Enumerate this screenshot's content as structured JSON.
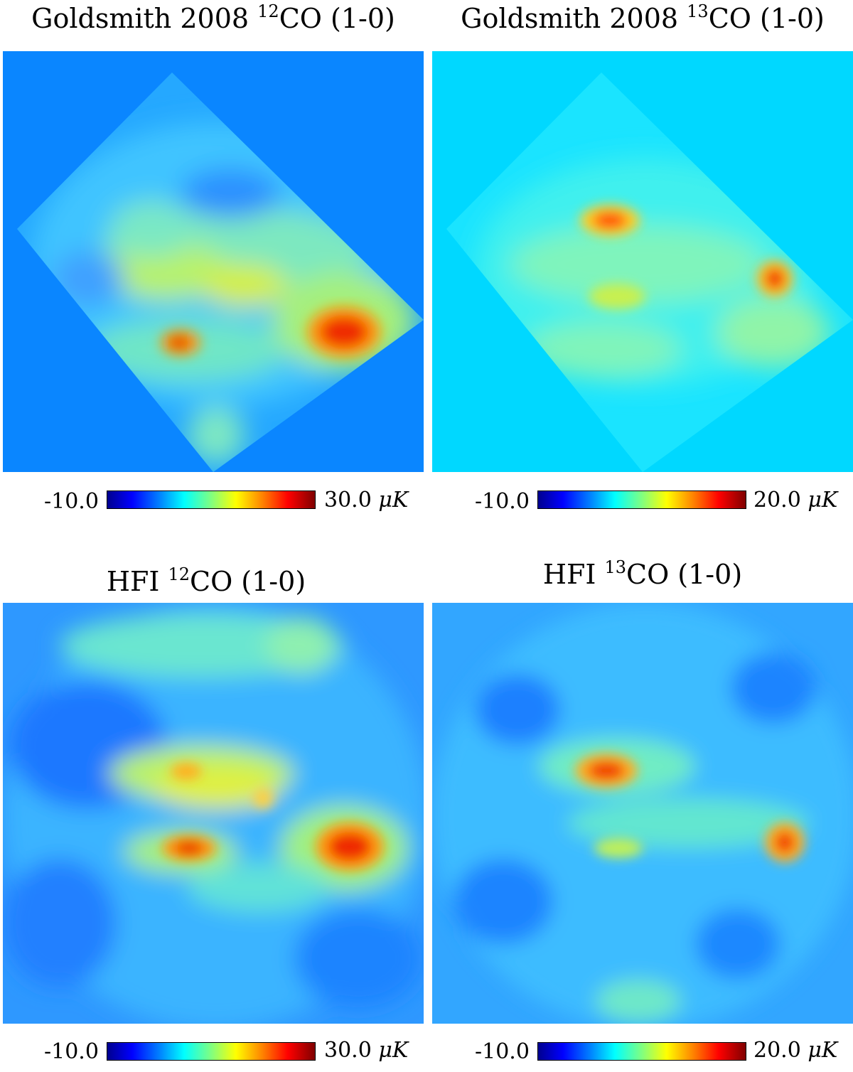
{
  "panels": [
    {
      "title_main": "Goldsmith 2008 ",
      "iso": "12",
      "title_rest": "CO (1-0)",
      "cb_min": "-10.0",
      "cb_max": "30.0",
      "cb_unit": "μK",
      "background": "#0a86ff"
    },
    {
      "title_main": "Goldsmith 2008 ",
      "iso": "13",
      "title_rest": "CO (1-0)",
      "cb_min": "-10.0",
      "cb_max": "20.0",
      "cb_unit": "μK",
      "background": "#00d8ff"
    },
    {
      "title_main": "HFI ",
      "iso": "12",
      "title_rest": "CO (1-0)",
      "cb_min": "-10.0",
      "cb_max": "30.0",
      "cb_unit": "μK",
      "background": "#3aa8ff"
    },
    {
      "title_main": "HFI ",
      "iso": "13",
      "title_rest": "CO (1-0)",
      "cb_min": "-10.0",
      "cb_max": "20.0",
      "cb_unit": "μK",
      "background": "#35b4ff"
    }
  ],
  "colormap": [
    "#00008f",
    "#0000ff",
    "#0080ff",
    "#00ffff",
    "#80ff80",
    "#ffff00",
    "#ff8000",
    "#ff0000",
    "#800000"
  ]
}
